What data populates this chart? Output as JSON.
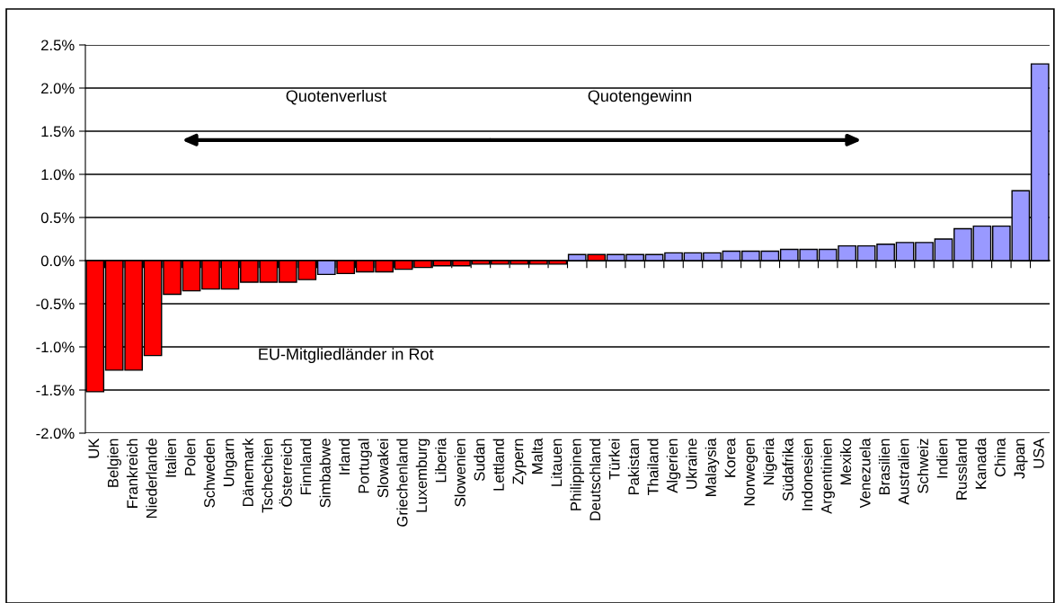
{
  "chart_data": {
    "type": "bar",
    "categories": [
      "UK",
      "Belgien",
      "Frankreich",
      "Niederlande",
      "Italien",
      "Polen",
      "Schweden",
      "Ungarn",
      "Dänemark",
      "Tschechien",
      "Österreich",
      "Finnland",
      "Simbabwe",
      "Irland",
      "Portugal",
      "Slowakei",
      "Griechenland",
      "Luxemburg",
      "Liberia",
      "Slowenien",
      "Sudan",
      "Lettland",
      "Zypern",
      "Malta",
      "Litauen",
      "Philippinen",
      "Deutschland",
      "Türkei",
      "Pakistan",
      "Thailand",
      "Algerien",
      "Ukraine",
      "Malaysia",
      "Korea",
      "Norwegen",
      "Nigeria",
      "Südafrika",
      "Indonesien",
      "Argentinien",
      "Mexiko",
      "Venezuela",
      "Brasilien",
      "Australien",
      "Schweiz",
      "Indien",
      "Russland",
      "Kanada",
      "China",
      "Japan",
      "USA"
    ],
    "values": [
      -1.52,
      -1.27,
      -1.27,
      -1.1,
      -0.39,
      -0.35,
      -0.33,
      -0.33,
      -0.25,
      -0.25,
      -0.25,
      -0.22,
      -0.16,
      -0.15,
      -0.13,
      -0.13,
      -0.1,
      -0.08,
      -0.06,
      -0.06,
      -0.04,
      -0.04,
      -0.04,
      -0.04,
      -0.04,
      0.07,
      0.07,
      0.07,
      0.07,
      0.07,
      0.09,
      0.09,
      0.09,
      0.11,
      0.11,
      0.11,
      0.13,
      0.13,
      0.13,
      0.17,
      0.17,
      0.19,
      0.21,
      0.21,
      0.25,
      0.37,
      0.4,
      0.4,
      0.81,
      2.28
    ],
    "colors": [
      "#ff0000",
      "#ff0000",
      "#ff0000",
      "#ff0000",
      "#ff0000",
      "#ff0000",
      "#ff0000",
      "#ff0000",
      "#ff0000",
      "#ff0000",
      "#ff0000",
      "#ff0000",
      "#9999ff",
      "#ff0000",
      "#ff0000",
      "#ff0000",
      "#ff0000",
      "#ff0000",
      "#ff0000",
      "#ff0000",
      "#ff0000",
      "#ff0000",
      "#ff0000",
      "#ff0000",
      "#ff0000",
      "#9999ff",
      "#ff0000",
      "#9999ff",
      "#9999ff",
      "#9999ff",
      "#9999ff",
      "#9999ff",
      "#9999ff",
      "#9999ff",
      "#9999ff",
      "#9999ff",
      "#9999ff",
      "#9999ff",
      "#9999ff",
      "#9999ff",
      "#9999ff",
      "#9999ff",
      "#9999ff",
      "#9999ff",
      "#9999ff",
      "#9999ff",
      "#9999ff",
      "#9999ff",
      "#9999ff",
      "#9999ff"
    ],
    "ylim": [
      -2.0,
      2.5
    ],
    "yticks": [
      {
        "value": -2.0,
        "label": "-2.0%"
      },
      {
        "value": -1.5,
        "label": "-1.5%"
      },
      {
        "value": -1.0,
        "label": "-1.0%"
      },
      {
        "value": -0.5,
        "label": "-0.5%"
      },
      {
        "value": 0.0,
        "label": "0.0%"
      },
      {
        "value": 0.5,
        "label": "0.5%"
      },
      {
        "value": 1.0,
        "label": "1.0%"
      },
      {
        "value": 1.5,
        "label": "1.5%"
      },
      {
        "value": 2.0,
        "label": "2.0%"
      },
      {
        "value": 2.5,
        "label": "2.5%"
      }
    ],
    "grid": "y",
    "annotations": [
      "Quotenverlust",
      "Quotengewinn",
      "EU-Mitgliedländer in Rot"
    ]
  }
}
